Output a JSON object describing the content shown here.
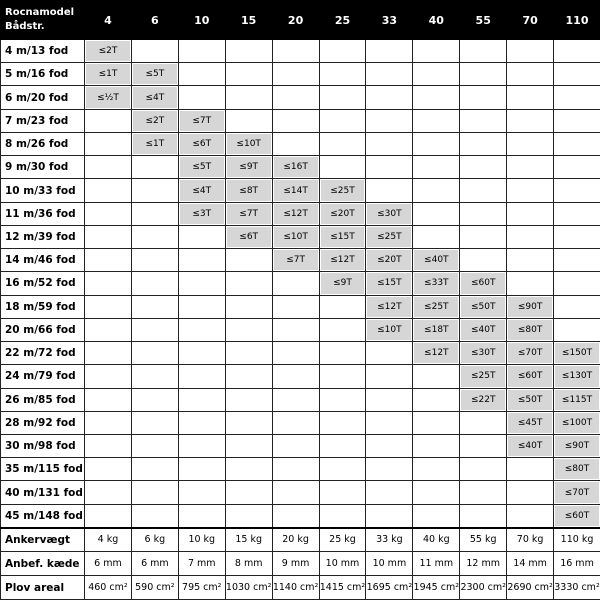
{
  "header": {
    "corner": [
      "Rocnamodel",
      "Bådstr."
    ],
    "columns": [
      "4",
      "6",
      "10",
      "15",
      "20",
      "25",
      "33",
      "40",
      "55",
      "70",
      "110"
    ]
  },
  "rows": [
    {
      "label": "4 m/13 fod",
      "cells": [
        "≤2T",
        null,
        null,
        null,
        null,
        null,
        null,
        null,
        null,
        null,
        null
      ]
    },
    {
      "label": "5 m/16 fod",
      "cells": [
        "≤1T",
        "≤5T",
        null,
        null,
        null,
        null,
        null,
        null,
        null,
        null,
        null
      ]
    },
    {
      "label": "6 m/20 fod",
      "cells": [
        "≤½T",
        "≤4T",
        null,
        null,
        null,
        null,
        null,
        null,
        null,
        null,
        null
      ]
    },
    {
      "label": "7 m/23 fod",
      "cells": [
        null,
        "≤2T",
        "≤7T",
        null,
        null,
        null,
        null,
        null,
        null,
        null,
        null
      ]
    },
    {
      "label": "8 m/26 fod",
      "cells": [
        null,
        "≤1T",
        "≤6T",
        "≤10T",
        null,
        null,
        null,
        null,
        null,
        null,
        null
      ]
    },
    {
      "label": "9 m/30 fod",
      "cells": [
        null,
        null,
        "≤5T",
        "≤9T",
        "≤16T",
        null,
        null,
        null,
        null,
        null,
        null
      ]
    },
    {
      "label": "10 m/33 fod",
      "cells": [
        null,
        null,
        "≤4T",
        "≤8T",
        "≤14T",
        "≤25T",
        null,
        null,
        null,
        null,
        null
      ]
    },
    {
      "label": "11 m/36 fod",
      "cells": [
        null,
        null,
        "≤3T",
        "≤7T",
        "≤12T",
        "≤20T",
        "≤30T",
        null,
        null,
        null,
        null
      ]
    },
    {
      "label": "12 m/39 fod",
      "cells": [
        null,
        null,
        null,
        "≤6T",
        "≤10T",
        "≤15T",
        "≤25T",
        null,
        null,
        null,
        null
      ]
    },
    {
      "label": "14 m/46 fod",
      "cells": [
        null,
        null,
        null,
        null,
        "≤7T",
        "≤12T",
        "≤20T",
        "≤40T",
        null,
        null,
        null
      ]
    },
    {
      "label": "16 m/52 fod",
      "cells": [
        null,
        null,
        null,
        null,
        null,
        "≤9T",
        "≤15T",
        "≤33T",
        "≤60T",
        null,
        null
      ]
    },
    {
      "label": "18 m/59 fod",
      "cells": [
        null,
        null,
        null,
        null,
        null,
        null,
        "≤12T",
        "≤25T",
        "≤50T",
        "≤90T",
        null
      ]
    },
    {
      "label": "20 m/66 fod",
      "cells": [
        null,
        null,
        null,
        null,
        null,
        null,
        "≤10T",
        "≤18T",
        "≤40T",
        "≤80T",
        null
      ]
    },
    {
      "label": "22 m/72 fod",
      "cells": [
        null,
        null,
        null,
        null,
        null,
        null,
        null,
        "≤12T",
        "≤30T",
        "≤70T",
        "≤150T"
      ]
    },
    {
      "label": "24 m/79 fod",
      "cells": [
        null,
        null,
        null,
        null,
        null,
        null,
        null,
        null,
        "≤25T",
        "≤60T",
        "≤130T"
      ]
    },
    {
      "label": "26 m/85 fod",
      "cells": [
        null,
        null,
        null,
        null,
        null,
        null,
        null,
        null,
        "≤22T",
        "≤50T",
        "≤115T"
      ]
    },
    {
      "label": "28 m/92 fod",
      "cells": [
        null,
        null,
        null,
        null,
        null,
        null,
        null,
        null,
        null,
        "≤45T",
        "≤100T"
      ]
    },
    {
      "label": "30 m/98 fod",
      "cells": [
        null,
        null,
        null,
        null,
        null,
        null,
        null,
        null,
        null,
        "≤40T",
        "≤90T"
      ]
    },
    {
      "label": "35 m/115 fod",
      "cells": [
        null,
        null,
        null,
        null,
        null,
        null,
        null,
        null,
        null,
        null,
        "≤80T"
      ]
    },
    {
      "label": "40 m/131 fod",
      "cells": [
        null,
        null,
        null,
        null,
        null,
        null,
        null,
        null,
        null,
        null,
        "≤70T"
      ]
    },
    {
      "label": "45 m/148 fod",
      "cells": [
        null,
        null,
        null,
        null,
        null,
        null,
        null,
        null,
        null,
        null,
        "≤60T"
      ]
    }
  ],
  "footer": [
    {
      "label": "Ankervægt",
      "cells": [
        "4 kg",
        "6 kg",
        "10 kg",
        "15 kg",
        "20 kg",
        "25 kg",
        "33 kg",
        "40 kg",
        "55 kg",
        "70 kg",
        "110 kg"
      ]
    },
    {
      "label": "Anbef. kæde",
      "cells": [
        "6 mm",
        "6 mm",
        "7 mm",
        "8 mm",
        "9 mm",
        "10 mm",
        "10 mm",
        "11 mm",
        "12 mm",
        "14 mm",
        "16 mm"
      ]
    },
    {
      "label": "Plov areal",
      "cells": [
        "460 cm²",
        "590 cm²",
        "795 cm²",
        "1030 cm²",
        "1140 cm²",
        "1415 cm²",
        "1695 cm²",
        "1945 cm²",
        "2300 cm²",
        "2690 cm²",
        "3330 cm²"
      ]
    }
  ]
}
